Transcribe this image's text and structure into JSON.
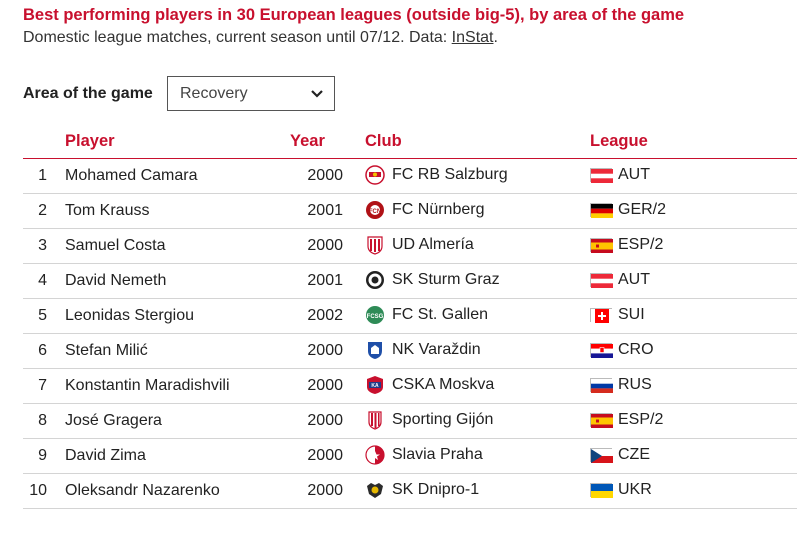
{
  "header": {
    "title": "Best performing players in 30 European leagues (outside big-5), by area of the game",
    "subtitle_prefix": "Domestic league matches, current season until 07/12. Data: ",
    "subtitle_link": "InStat",
    "subtitle_suffix": "."
  },
  "filter": {
    "label": "Area of the game",
    "selected": "Recovery",
    "icon": "chevron-down-icon"
  },
  "table": {
    "columns": {
      "player": "Player",
      "year": "Year",
      "club": "Club",
      "league": "League"
    },
    "rows": [
      {
        "rank": "1",
        "player": "Mohamed Camara",
        "year": "2000",
        "club": "FC RB Salzburg",
        "league": "AUT",
        "flag": "austria"
      },
      {
        "rank": "2",
        "player": "Tom Krauss",
        "year": "2001",
        "club": "FC Nürnberg",
        "league": "GER/2",
        "flag": "germany"
      },
      {
        "rank": "3",
        "player": "Samuel Costa",
        "year": "2000",
        "club": "UD Almería",
        "league": "ESP/2",
        "flag": "spain"
      },
      {
        "rank": "4",
        "player": "David Nemeth",
        "year": "2001",
        "club": "SK Sturm Graz",
        "league": "AUT",
        "flag": "austria"
      },
      {
        "rank": "5",
        "player": "Leonidas Stergiou",
        "year": "2002",
        "club": "FC St. Gallen",
        "league": "SUI",
        "flag": "switzerland"
      },
      {
        "rank": "6",
        "player": "Stefan Milić",
        "year": "2000",
        "club": "NK Varaždin",
        "league": "CRO",
        "flag": "croatia"
      },
      {
        "rank": "7",
        "player": "Konstantin Maradishvili",
        "year": "2000",
        "club": "CSKA Moskva",
        "league": "RUS",
        "flag": "russia"
      },
      {
        "rank": "8",
        "player": "José Gragera",
        "year": "2000",
        "club": "Sporting Gijón",
        "league": "ESP/2",
        "flag": "spain"
      },
      {
        "rank": "9",
        "player": "David Zima",
        "year": "2000",
        "club": "Slavia Praha",
        "league": "CZE",
        "flag": "czechia"
      },
      {
        "rank": "10",
        "player": "Oleksandr Nazarenko",
        "year": "2000",
        "club": "SK Dnipro-1",
        "league": "UKR",
        "flag": "ukraine"
      }
    ]
  },
  "colors": {
    "accent": "#c8102e",
    "row_border": "#d4d4d4"
  }
}
